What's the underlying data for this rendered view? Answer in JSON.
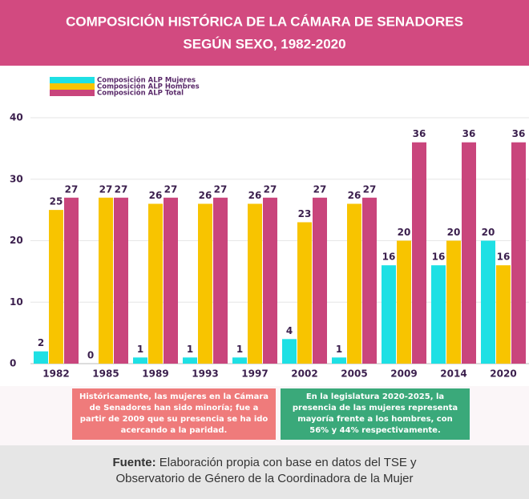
{
  "chart_data": {
    "type": "bar",
    "title": "COMPOSICIÓN HISTÓRICA DE LA CÁMARA DE SENADORES",
    "subtitle": "SEGÚN SEXO, 1982-2020",
    "categories": [
      "1982",
      "1985",
      "1989",
      "1993",
      "1997",
      "2002",
      "2005",
      "2009",
      "2014",
      "2020"
    ],
    "series": [
      {
        "name": "Composición ALP Mujeres",
        "color": "#1ee0e4",
        "values": [
          2,
          0,
          1,
          1,
          1,
          4,
          1,
          16,
          16,
          20
        ]
      },
      {
        "name": "Composición ALP Hombres",
        "color": "#f8c400",
        "values": [
          25,
          27,
          26,
          26,
          26,
          23,
          26,
          20,
          20,
          16
        ]
      },
      {
        "name": "Composición ALP Total",
        "color": "#c9457c",
        "values": [
          27,
          27,
          27,
          27,
          27,
          27,
          27,
          36,
          36,
          36
        ]
      }
    ],
    "ylim": [
      0,
      40
    ],
    "yticks": [
      0,
      10,
      20,
      30,
      40
    ],
    "grid": true,
    "legend": "top-left",
    "annotations": [
      "Históricamente, las mujeres en la Cámara de Senadores han sido minoría; fue a partir de 2009 que su presencia se ha ido acercando a la paridad.",
      "En la legislatura 2020-2025, la presencia de las mujeres representa mayoría frente a los hombres, con 56% y 44% respectivamente."
    ],
    "source_label": "Fuente:",
    "source": "Elaboración propia con base en datos del TSE y Observatorio de Género de la Coordinadora de la Mujer"
  }
}
